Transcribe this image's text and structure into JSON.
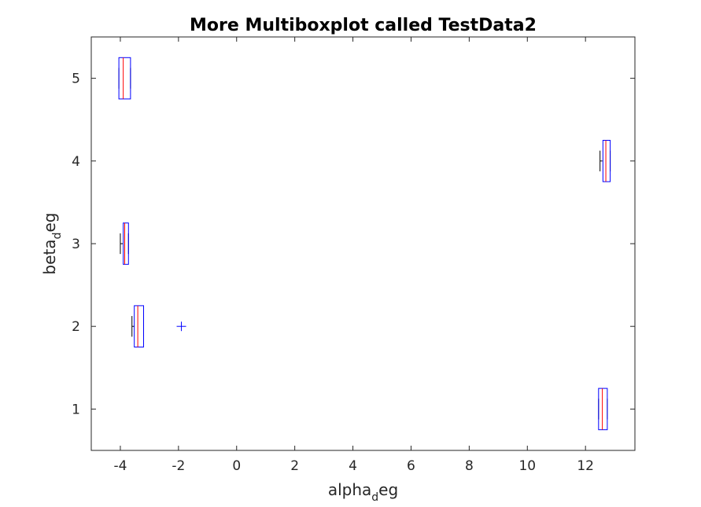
{
  "chart_data": {
    "type": "boxplot",
    "title": "More Multiboxplot called TestData2",
    "xlabel": {
      "main": "alpha",
      "subscript": "d",
      "rest": "eg"
    },
    "ylabel": {
      "main": "beta",
      "subscript": "d",
      "rest": "eg"
    },
    "xlim": [
      -5,
      13.7
    ],
    "ylim": [
      0.5,
      5.5
    ],
    "xticks": [
      -4,
      -2,
      0,
      2,
      4,
      6,
      8,
      10,
      12
    ],
    "xtick_labels": [
      "-4",
      "-2",
      "0",
      "2",
      "4",
      "6",
      "8",
      "10",
      "12"
    ],
    "yticks": [
      1,
      2,
      3,
      4,
      5
    ],
    "ytick_labels": [
      "1",
      "2",
      "3",
      "4",
      "5"
    ],
    "orientation": "horizontal",
    "box_half_height": 0.25,
    "grid": false,
    "colors": {
      "box": "#0000ff",
      "median": "#ff0000",
      "whisker": "#000000",
      "outlier": "#0000ff",
      "axes": "#262626"
    },
    "boxes": [
      {
        "y": 1,
        "whisker_low": 12.45,
        "q1": 12.45,
        "median": 12.58,
        "q3": 12.75,
        "whisker_high": 12.75,
        "outliers": []
      },
      {
        "y": 2,
        "whisker_low": -3.6,
        "q1": -3.52,
        "median": -3.4,
        "q3": -3.2,
        "whisker_high": -3.2,
        "outliers": [
          -1.9
        ]
      },
      {
        "y": 3,
        "whisker_low": -4.0,
        "q1": -3.9,
        "median": -3.85,
        "q3": -3.72,
        "whisker_high": -3.72,
        "outliers": []
      },
      {
        "y": 4,
        "whisker_low": 12.5,
        "q1": 12.6,
        "median": 12.7,
        "q3": 12.85,
        "whisker_high": 12.85,
        "outliers": []
      },
      {
        "y": 5,
        "whisker_low": -4.05,
        "q1": -4.05,
        "median": -3.9,
        "q3": -3.65,
        "whisker_high": -3.65,
        "outliers": []
      }
    ]
  }
}
